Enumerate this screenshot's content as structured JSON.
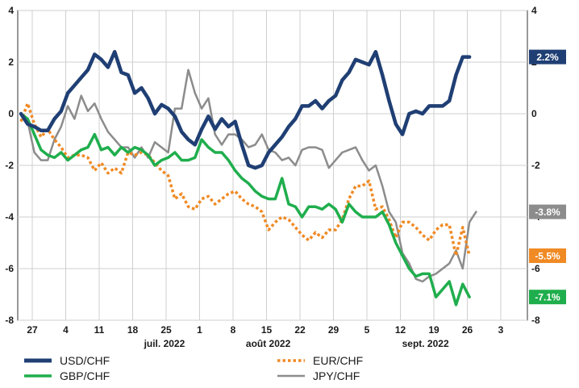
{
  "chart_data": {
    "type": "line",
    "x_tick_labels": [
      "27",
      "4",
      "11",
      "18",
      "25",
      "1",
      "8",
      "15",
      "22",
      "29",
      "5",
      "12",
      "19",
      "26",
      "3"
    ],
    "month_labels": [
      "juil. 2022",
      "août 2022",
      "sept. 2022"
    ],
    "y_ticks": [
      4,
      2,
      0,
      -2,
      -4,
      -6,
      -8
    ],
    "ylim": [
      -8,
      4
    ],
    "grid": true,
    "legend_position": "bottom",
    "series": [
      {
        "name": "USD/CHF",
        "color": "#1f3f74",
        "dash": "solid",
        "end_label": "2.2%",
        "badge_color": "#1f3f74",
        "values": [
          0,
          -0.4,
          -0.5,
          -0.65,
          -0.65,
          -0.2,
          0.1,
          0.8,
          1.1,
          1.4,
          1.7,
          2.3,
          2.1,
          1.8,
          2.4,
          1.6,
          1.5,
          0.8,
          1.0,
          0.6,
          0.0,
          0.35,
          0.2,
          -0.1,
          -0.7,
          -1.0,
          -1.2,
          -0.6,
          -0.1,
          -0.6,
          -0.2,
          -0.5,
          -0.3,
          -1.2,
          -2.0,
          -2.1,
          -2.0,
          -1.5,
          -1.2,
          -0.9,
          -0.5,
          -0.2,
          0.3,
          0.3,
          0.5,
          0.2,
          0.5,
          0.7,
          1.3,
          1.6,
          2.1,
          2.0,
          1.9,
          2.4,
          1.5,
          0.5,
          -0.4,
          -0.8,
          0.0,
          0.1,
          0.0,
          0.3,
          0.3,
          0.3,
          0.5,
          1.5,
          2.2,
          2.2
        ]
      },
      {
        "name": "EUR/CHF",
        "color": "#f08a24",
        "dash": "dotted",
        "end_label": "-5.5%",
        "badge_color": "#f08a24",
        "values": [
          -0.3,
          0.4,
          -0.4,
          -0.9,
          -0.6,
          -1.0,
          -1.3,
          -1.7,
          -1.6,
          -1.6,
          -1.7,
          -2.2,
          -1.9,
          -2.3,
          -2.1,
          -2.3,
          -1.5,
          -1.6,
          -1.5,
          -1.6,
          -1.9,
          -2.2,
          -2.4,
          -3.3,
          -3.1,
          -3.6,
          -3.7,
          -3.3,
          -3.2,
          -3.5,
          -3.3,
          -3.1,
          -3.0,
          -3.3,
          -3.5,
          -3.6,
          -3.8,
          -4.5,
          -4.2,
          -4.0,
          -4.1,
          -4.4,
          -4.7,
          -4.9,
          -4.6,
          -4.8,
          -4.5,
          -4.5,
          -4.1,
          -3.3,
          -2.8,
          -2.8,
          -2.6,
          -3.7,
          -3.6,
          -4.1,
          -4.8,
          -4.2,
          -4.2,
          -4.4,
          -4.7,
          -4.9,
          -4.5,
          -4.3,
          -4.3,
          -5.5,
          -4.4,
          -5.5
        ]
      },
      {
        "name": "GBP/CHF",
        "color": "#1fae4d",
        "dash": "solid",
        "end_label": "-7.1%",
        "badge_color": "#1fae4d",
        "values": [
          0,
          -0.2,
          -0.8,
          -1.4,
          -1.6,
          -1.7,
          -1.5,
          -1.8,
          -1.6,
          -1.4,
          -1.3,
          -0.8,
          -1.4,
          -1.3,
          -1.6,
          -1.3,
          -1.5,
          -1.3,
          -1.4,
          -1.6,
          -2.0,
          -1.8,
          -1.7,
          -1.5,
          -1.8,
          -1.8,
          -1.7,
          -1.0,
          -1.3,
          -1.5,
          -1.5,
          -1.8,
          -2.2,
          -2.5,
          -2.7,
          -3.0,
          -3.2,
          -3.3,
          -3.3,
          -2.5,
          -3.5,
          -3.6,
          -4.0,
          -3.6,
          -3.6,
          -3.7,
          -3.5,
          -3.7,
          -4.2,
          -3.5,
          -3.8,
          -4.0,
          -4.0,
          -4.0,
          -3.8,
          -4.3,
          -5.0,
          -5.5,
          -6.0,
          -6.3,
          -6.2,
          -6.2,
          -7.1,
          -6.8,
          -6.5,
          -7.4,
          -6.6,
          -7.1
        ]
      },
      {
        "name": "JPY/CHF",
        "color": "#8c8c8c",
        "dash": "solid",
        "end_label": "-3.8%",
        "badge_color": "#8c8c8c",
        "values": [
          0,
          -0.3,
          -1.5,
          -1.8,
          -1.8,
          -1.0,
          -0.5,
          0.3,
          -0.2,
          0.7,
          0.1,
          0.4,
          -0.2,
          -0.7,
          -1.0,
          -1.3,
          -1.3,
          -1.7,
          -1.3,
          -1.7,
          -1.1,
          -1.3,
          -1.5,
          0.2,
          0.2,
          1.7,
          0.8,
          0.2,
          0.6,
          -0.8,
          -1.2,
          -0.8,
          -0.8,
          -1.0,
          -1.3,
          -1.2,
          -0.8,
          -1.4,
          -1.5,
          -1.8,
          -1.7,
          -2.0,
          -1.4,
          -1.3,
          -1.3,
          -1.4,
          -2.1,
          -1.8,
          -1.5,
          -1.4,
          -1.3,
          -1.8,
          -2.2,
          -2.0,
          -2.8,
          -3.8,
          -4.2,
          -5.4,
          -5.8,
          -6.4,
          -6.5,
          -6.3,
          -6.2,
          -6.0,
          -5.8,
          -5.3,
          -6.0,
          -4.2,
          -3.8
        ]
      }
    ]
  }
}
